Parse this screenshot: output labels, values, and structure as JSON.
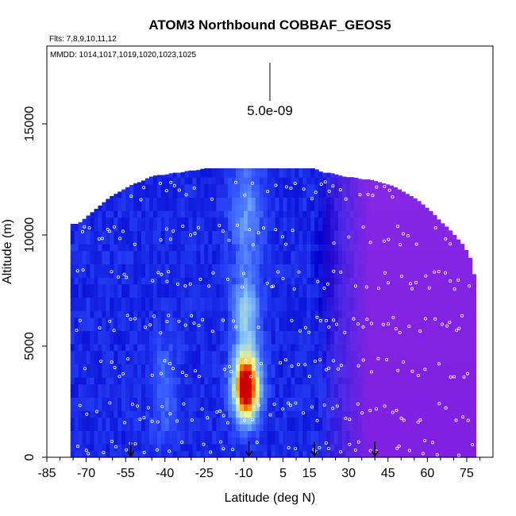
{
  "chart_data": {
    "type": "heatmap",
    "title": "ATOM3 Northbound COBBAF_GEOS5",
    "flights_note": "Flts: 7,8,9,10,11,12",
    "dates_note": "MMDD: 1014,1017,1019,1020,1023,1025",
    "xlabel": "Latitude (deg N)",
    "ylabel": "Altitude (m)",
    "xlim": [
      -85,
      85
    ],
    "ylim": [
      0,
      18500
    ],
    "x_ticks": [
      -85,
      -70,
      -55,
      -40,
      -25,
      -10,
      5,
      15,
      30,
      45,
      60,
      75
    ],
    "y_ticks": [
      0,
      5000,
      10000,
      15000
    ],
    "scale_bar_label": "5.0e-09",
    "color_scale": [
      "#000066",
      "#0000cc",
      "#3050ff",
      "#80c0ff",
      "#ffff80",
      "#ff8000",
      "#cc0000",
      "#8020e0"
    ],
    "ceiling_profile": {
      "lat": [
        -76,
        -73,
        -70,
        -67,
        -64,
        -61,
        -58,
        -55,
        -52,
        -49,
        -46,
        -43,
        -40,
        -37,
        -34,
        -31,
        -28,
        -25,
        -22,
        -19,
        -16,
        -13,
        -10,
        -7,
        -4,
        -1,
        2,
        5,
        8,
        11,
        14,
        17,
        20,
        23,
        26,
        29,
        32,
        35,
        38,
        41,
        44,
        47,
        50,
        53,
        56,
        59,
        62,
        65,
        68,
        71,
        74,
        77,
        79
      ],
      "alt": [
        10500,
        10500,
        10800,
        11100,
        11400,
        11700,
        11900,
        12100,
        12300,
        12400,
        12600,
        12700,
        12700,
        12800,
        12800,
        12900,
        12900,
        13000,
        13000,
        13000,
        13000,
        13000,
        13000,
        13000,
        13000,
        13000,
        13000,
        13000,
        13000,
        13000,
        13000,
        13000,
        12800,
        12800,
        12700,
        12600,
        12600,
        12500,
        12500,
        12400,
        12300,
        12200,
        12000,
        11800,
        11600,
        11300,
        11000,
        10600,
        10300,
        9900,
        9500,
        8800,
        7300
      ]
    },
    "plume": {
      "center_lat": -9,
      "peak_alt": 3200,
      "peak_value": 1.0
    },
    "flight_levels_m": [
      300,
      2000,
      4000,
      6000,
      8000,
      10000,
      12000
    ],
    "profile_markers_lat": [
      -53,
      -8,
      17,
      40
    ]
  }
}
